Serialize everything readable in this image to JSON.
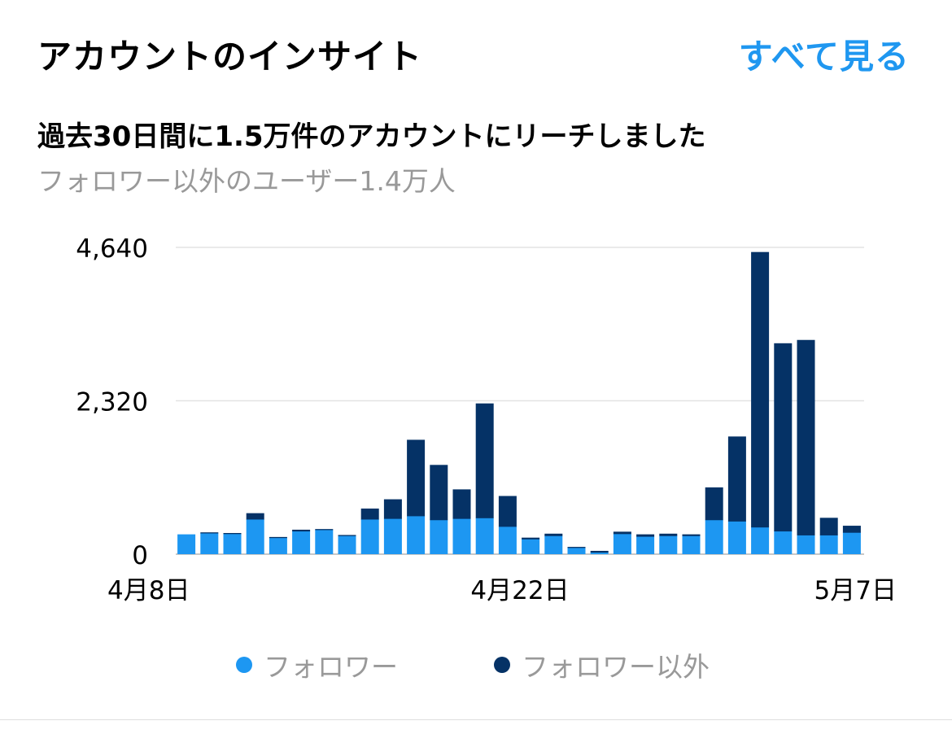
{
  "header": {
    "title": "アカウントのインサイト",
    "see_all": "すべて見る"
  },
  "summary": {
    "reach": "過去30日間に1.5万件のアカウントにリーチしました",
    "non_followers": "フォロワー以外のユーザー1.4万人"
  },
  "colors": {
    "followers": "#1d97f2",
    "non_followers": "#053266",
    "accent": "#1f97f0",
    "muted_text": "#999999",
    "gridline": "#e3e3e3"
  },
  "chart_data": {
    "type": "bar",
    "stacked": true,
    "ylim": [
      0,
      4640
    ],
    "y_ticks": [
      "4,640",
      "2,320",
      "0"
    ],
    "y_tick_values": [
      4640,
      2320,
      0
    ],
    "x_tick_labels": [
      {
        "index": 0,
        "label": "4月8日"
      },
      {
        "index": 15,
        "label": "4月22日"
      },
      {
        "index": 30,
        "label": "5月7日"
      }
    ],
    "grid": true,
    "legend_position": "bottom",
    "series": [
      {
        "name": "フォロワー",
        "values": [
          300,
          320,
          310,
          530,
          250,
          350,
          370,
          280,
          530,
          540,
          580,
          520,
          540,
          550,
          420,
          230,
          280,
          100,
          30,
          310,
          270,
          280,
          280,
          520,
          500,
          410,
          350,
          290,
          290,
          330
        ]
      },
      {
        "name": "フォロワー以外",
        "values": [
          0,
          10,
          10,
          90,
          10,
          20,
          10,
          10,
          160,
          290,
          1150,
          830,
          440,
          1730,
          460,
          20,
          30,
          10,
          20,
          30,
          30,
          30,
          20,
          490,
          1280,
          4160,
          2840,
          2950,
          260,
          100
        ]
      }
    ]
  }
}
